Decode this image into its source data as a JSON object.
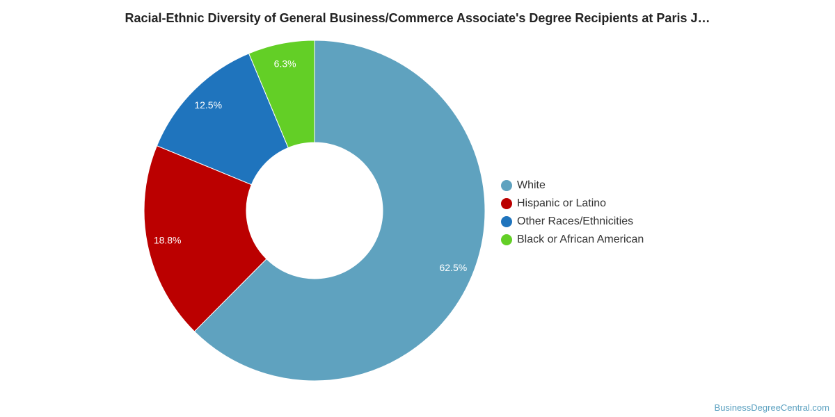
{
  "chart_data": {
    "type": "pie",
    "title": "Racial-Ethnic Diversity of General Business/Commerce Associate's Degree Recipients at Paris J…",
    "slices": [
      {
        "label": "White",
        "value": 62.5,
        "value_label": "62.5%",
        "color": "#5fa2bf"
      },
      {
        "label": "Hispanic or Latino",
        "value": 18.8,
        "value_label": "18.8%",
        "color": "#bb0000"
      },
      {
        "label": "Other Races/Ethnicities",
        "value": 12.5,
        "value_label": "12.5%",
        "color": "#1f74bd"
      },
      {
        "label": "Black or African American",
        "value": 6.3,
        "value_label": "6.3%",
        "color": "#63cf26"
      }
    ],
    "donut": true,
    "legend_position": "right"
  },
  "watermark": "BusinessDegreeCentral.com"
}
